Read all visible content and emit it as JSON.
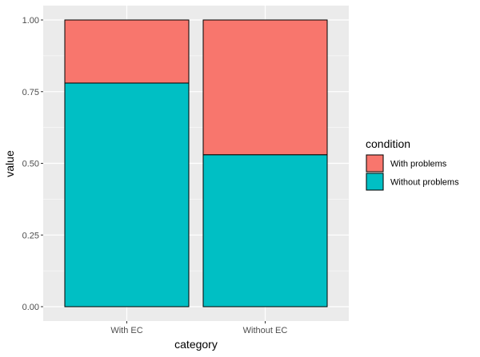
{
  "chart_data": {
    "type": "bar",
    "stacked": true,
    "categories": [
      "With EC",
      "Without EC"
    ],
    "series": [
      {
        "name": "With problems",
        "values": [
          0.22,
          0.47
        ],
        "color": "#f8766d"
      },
      {
        "name": "Without problems",
        "values": [
          0.78,
          0.53
        ],
        "color": "#00bfc4"
      }
    ],
    "xlabel": "category",
    "ylabel": "value",
    "ylim": [
      0,
      1
    ],
    "yticks": [
      0,
      0.25,
      0.5,
      0.75,
      1
    ],
    "ytick_labels": [
      "0.00",
      "0.25",
      "0.50",
      "0.75",
      "1.00"
    ],
    "legend_title": "condition",
    "legend_position": "right",
    "grid": true,
    "panel_background": "#ebebeb",
    "grid_color": "#ffffff",
    "bar_outline": "#000000"
  }
}
